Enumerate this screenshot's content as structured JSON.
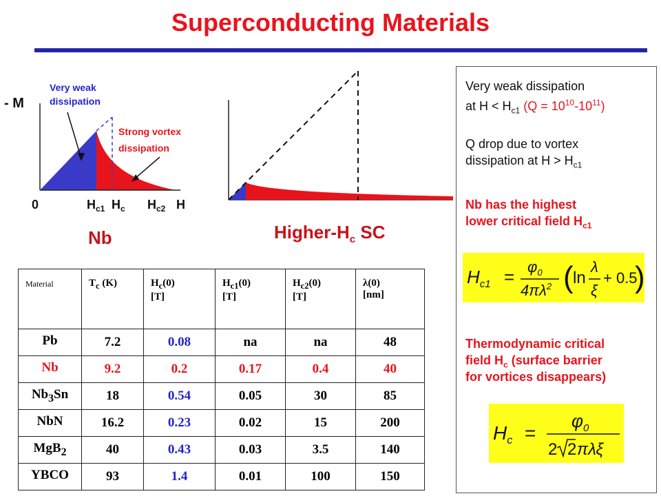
{
  "title": "Superconducting Materials",
  "colors": {
    "title": "#e8141c",
    "rule": "#2424a8",
    "blue_fill": "#3a3ac8",
    "red_fill": "#e8141c",
    "formula_bg": "#ffff1a"
  },
  "left_plot": {
    "y_label": "- M",
    "x_labels": {
      "zero": "0",
      "hc1": "H",
      "hc1_sub": "c1",
      "hc": "H",
      "hc_sub": "c",
      "hc2": "H",
      "hc2_sub": "c2",
      "h": "H"
    },
    "annotation_weak_line1": "Very weak",
    "annotation_weak_line2": "dissipation",
    "annotation_strong_line1": "Strong vortex",
    "annotation_strong_line2": "dissipation"
  },
  "captions": {
    "nb": "Nb",
    "higher_main": "Higher-H",
    "higher_sub": "c",
    "higher_tail": " SC"
  },
  "table": {
    "headers": [
      {
        "main": "Material",
        "sub": "",
        "tail": "",
        "unit": ""
      },
      {
        "main": "T",
        "sub": "c",
        "tail": " (K)",
        "unit": ""
      },
      {
        "main": "H",
        "sub": "c",
        "tail": "(0)",
        "unit": "[T]"
      },
      {
        "main": "H",
        "sub": "c1",
        "tail": "(0)",
        "unit": "[T]"
      },
      {
        "main": "H",
        "sub": "c2",
        "tail": "(0)",
        "unit": "[T]"
      },
      {
        "main": "λ",
        "sub": "",
        "tail": "(0)",
        "unit": "[nm]"
      }
    ],
    "rows": [
      {
        "material": "Pb",
        "mat_sub": "",
        "mat_tail": "",
        "tc": "7.2",
        "hc": "0.08",
        "hc1": "na",
        "hc2": "na",
        "lambda": "48",
        "highlight": false
      },
      {
        "material": "Nb",
        "mat_sub": "",
        "mat_tail": "",
        "tc": "9.2",
        "hc": "0.2",
        "hc1": "0.17",
        "hc2": "0.4",
        "lambda": "40",
        "highlight": true
      },
      {
        "material": "Nb",
        "mat_sub": "3",
        "mat_tail": "Sn",
        "tc": "18",
        "hc": "0.54",
        "hc1": "0.05",
        "hc2": "30",
        "lambda": "85",
        "highlight": false
      },
      {
        "material": "NbN",
        "mat_sub": "",
        "mat_tail": "",
        "tc": "16.2",
        "hc": "0.23",
        "hc1": "0.02",
        "hc2": "15",
        "lambda": "200",
        "highlight": false
      },
      {
        "material": "MgB",
        "mat_sub": "2",
        "mat_tail": "",
        "tc": "40",
        "hc": "0.43",
        "hc1": "0.03",
        "hc2": "3.5",
        "lambda": "140",
        "highlight": false
      },
      {
        "material": "YBCO",
        "mat_sub": "",
        "mat_tail": "",
        "tc": "93",
        "hc": "1.4",
        "hc1": "0.01",
        "hc2": "100",
        "lambda": "150",
        "highlight": false
      }
    ]
  },
  "side": {
    "p1_line1": "Very weak dissipation",
    "p1_line2_a": "at H < H",
    "p1_line2_sub": "c1",
    "p1_line2_b": " (Q = 10",
    "p1_sup1": "10",
    "p1_dash": "-10",
    "p1_sup2": "11",
    "p1_close": ")",
    "p2_line1": "Q drop due to vortex",
    "p2_line2_a": "dissipation at H > H",
    "p2_line2_sub": "c1",
    "p3_line1": "Nb has the highest",
    "p3_line2_a": "lower critical field H",
    "p3_line2_sub": "c1",
    "p4_line1": "Thermodynamic critical",
    "p4_line2_a": "field H",
    "p4_line2_sub": "c",
    "p4_line2_b": " (surface barrier",
    "p4_line3": "for vortices disappears)",
    "formula1": {
      "lhs": "H",
      "lhs_sub": "c1",
      "eq": "=",
      "num": "φ",
      "num_sub": "0",
      "den": "4πλ",
      "den_sup": "2",
      "ln": "ln",
      "frac_num": "λ",
      "frac_den": "ξ",
      "plus": "+ 0.5"
    },
    "formula2": {
      "lhs": "H",
      "lhs_sub": "c",
      "eq": "=",
      "num": "φ",
      "num_sub": "0",
      "den_a": "2",
      "den_root": "2",
      "den_b": "πλξ"
    }
  }
}
